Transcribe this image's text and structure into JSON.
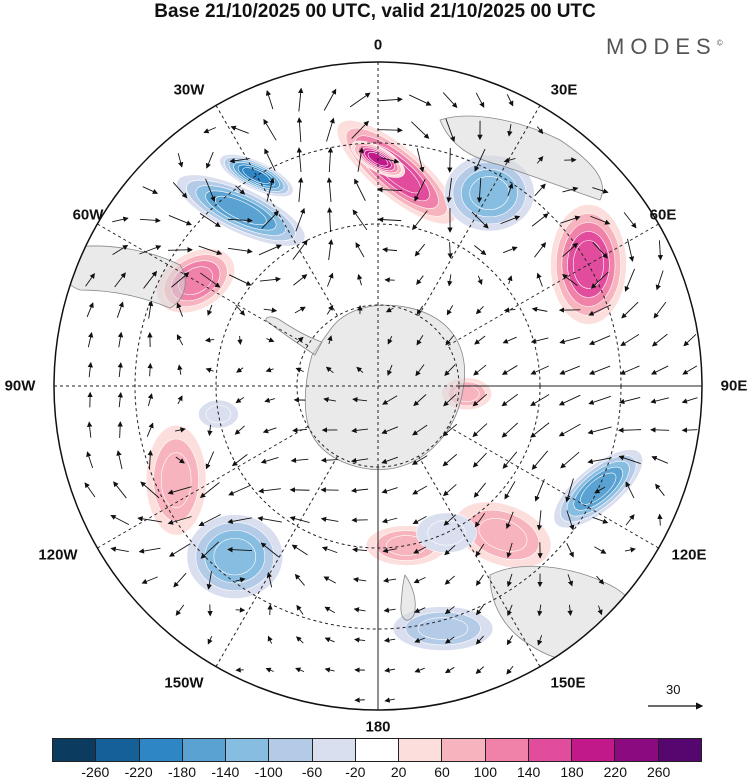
{
  "title": "Base 21/10/2025 00 UTC, valid 21/10/2025 00 UTC",
  "brand": "MODES",
  "brand_mark": "©",
  "lon_labels": {
    "n": "0",
    "ne": "30E",
    "e1": "60E",
    "e": "90E",
    "se1": "120E",
    "se": "150E",
    "s": "180",
    "sw": "150W",
    "sw1": "120W",
    "w": "90W",
    "nw1": "60W",
    "nw": "30W"
  },
  "reference_vector": "30",
  "colorbar": {
    "colors": [
      "#0b3b5e",
      "#16609a",
      "#2f86c4",
      "#5aa2d2",
      "#86bde0",
      "#b4cbe8",
      "#dadff0",
      "#ffffff",
      "#fcdedd",
      "#f8b4be",
      "#f082aa",
      "#e24c9c",
      "#c2198a",
      "#8b0a80",
      "#55066f"
    ],
    "ticks": [
      "-260",
      "-220",
      "-180",
      "-140",
      "-100",
      "-60",
      "-20",
      "20",
      "60",
      "100",
      "140",
      "180",
      "220",
      "260"
    ]
  },
  "anomaly_blobs": [
    {
      "lon": -38,
      "colat": 55,
      "rx": 70,
      "ry": 22,
      "rot": 25,
      "level": 3
    },
    {
      "lon": -30,
      "colat": 60,
      "rx": 40,
      "ry": 14,
      "rot": 25,
      "level": 2
    },
    {
      "lon": 5,
      "colat": 53,
      "rx": 75,
      "ry": 25,
      "rot": 40,
      "level": 11
    },
    {
      "lon": 0,
      "colat": 56,
      "rx": 30,
      "ry": 12,
      "rot": 30,
      "level": 12
    },
    {
      "lon": 30,
      "colat": 55,
      "rx": 45,
      "ry": 38,
      "rot": 0,
      "level": 4
    },
    {
      "lon": 60,
      "colat": 60,
      "rx": 38,
      "ry": 60,
      "rot": 0,
      "level": 11
    },
    {
      "lon": -60,
      "colat": 52,
      "rx": 42,
      "ry": 28,
      "rot": -30,
      "level": 10
    },
    {
      "lon": 115,
      "colat": 60,
      "rx": 55,
      "ry": 22,
      "rot": -40,
      "level": 3
    },
    {
      "lon": -140,
      "colat": 55,
      "rx": 48,
      "ry": 42,
      "rot": 0,
      "level": 4
    },
    {
      "lon": -115,
      "colat": 55,
      "rx": 30,
      "ry": 55,
      "rot": 0,
      "level": 9
    },
    {
      "lon": 140,
      "colat": 48,
      "rx": 50,
      "ry": 30,
      "rot": 20,
      "level": 9
    },
    {
      "lon": 165,
      "colat": 62,
      "rx": 50,
      "ry": 22,
      "rot": 0,
      "level": 5
    },
    {
      "lon": 170,
      "colat": 40,
      "rx": 40,
      "ry": 20,
      "rot": 0,
      "level": 9
    },
    {
      "lon": 95,
      "colat": 22,
      "rx": 25,
      "ry": 16,
      "rot": 0,
      "level": 9
    },
    {
      "lon": -100,
      "colat": 40,
      "rx": 20,
      "ry": 14,
      "rot": 0,
      "level": 6
    },
    {
      "lon": 155,
      "colat": 40,
      "rx": 30,
      "ry": 20,
      "rot": 0,
      "level": 6
    }
  ]
}
